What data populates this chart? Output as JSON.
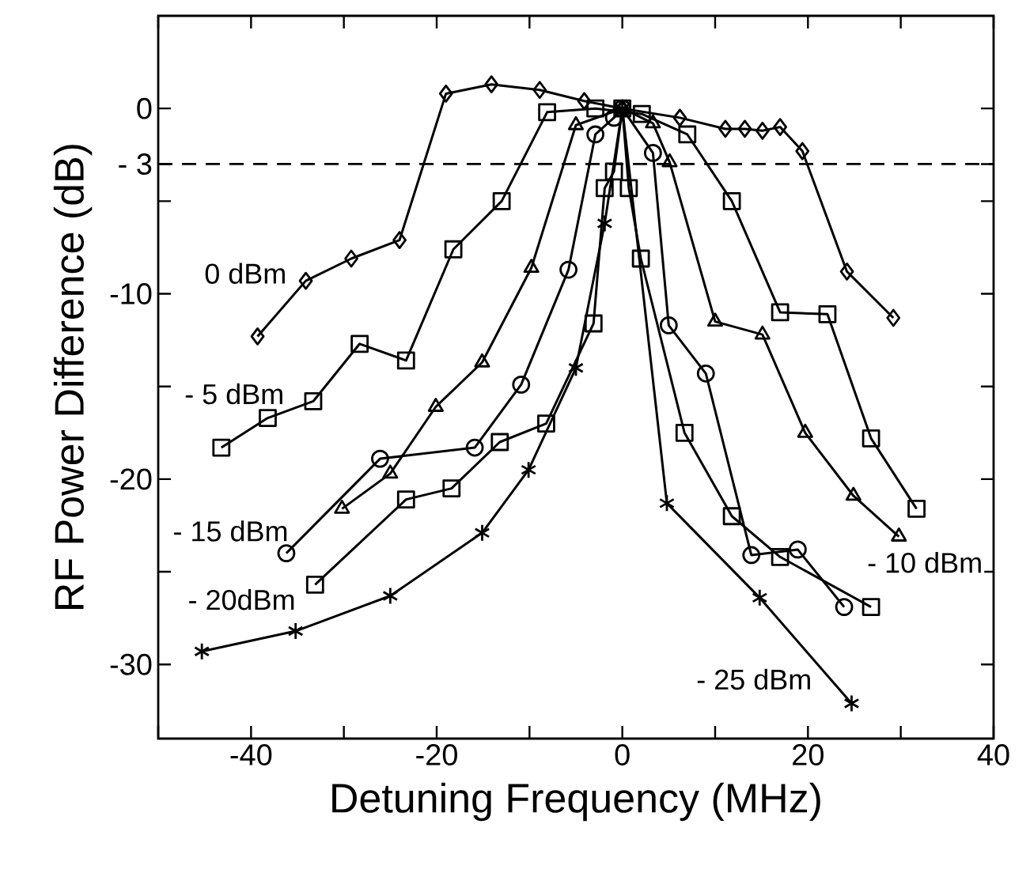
{
  "chart_data": {
    "type": "line",
    "xlabel": "Detuning Frequency (MHz)",
    "ylabel": "RF Power Difference (dB)",
    "xlim": [
      -50,
      40
    ],
    "ylim": [
      -34,
      5
    ],
    "xticks": [
      {
        "value": -50,
        "label": null
      },
      {
        "value": -40,
        "label": "-40"
      },
      {
        "value": -30,
        "label": null
      },
      {
        "value": -20,
        "label": "-20"
      },
      {
        "value": -10,
        "label": null
      },
      {
        "value": 0,
        "label": "0"
      },
      {
        "value": 10,
        "label": null
      },
      {
        "value": 20,
        "label": "20"
      },
      {
        "value": 30,
        "label": null
      },
      {
        "value": 40,
        "label": "40"
      }
    ],
    "yticks": [
      {
        "value": 0,
        "label": "0"
      },
      {
        "value": -3,
        "label": "- 3"
      },
      {
        "value": -5,
        "label": null
      },
      {
        "value": -10,
        "label": "-10"
      },
      {
        "value": -15,
        "label": null
      },
      {
        "value": -20,
        "label": "-20"
      },
      {
        "value": -25,
        "label": null
      },
      {
        "value": -30,
        "label": "-30"
      }
    ],
    "grid": false,
    "legend": "left",
    "ref_lines": [
      {
        "axis": "y",
        "value": -3,
        "color": "#000000",
        "line_style": "dashed"
      }
    ],
    "series": [
      {
        "name": "0 dBm",
        "color": "#000000",
        "marker": "diamond",
        "x": [
          -39.3,
          -34.1,
          -29.2,
          -24.0,
          -19.0,
          -14.1,
          -8.9,
          -4.1,
          0,
          6.2,
          11.1,
          13.2,
          15.1,
          17.0,
          19.4,
          24.2,
          29.2
        ],
        "values": [
          -12.3,
          -9.3,
          -8.1,
          -7.1,
          0.8,
          1.3,
          1.0,
          0.4,
          0,
          -0.5,
          -1.1,
          -1.1,
          -1.2,
          -1.0,
          -2.3,
          -8.8,
          -11.3
        ]
      },
      {
        "name": "- 5 dBm",
        "color": "#000000",
        "marker": "square",
        "x": [
          -43.2,
          -38.2,
          -33.3,
          -28.3,
          -23.3,
          -18.2,
          -13.0,
          -8.1,
          -2.9,
          2.1,
          7.0,
          11.8,
          17.0,
          22.1,
          26.8,
          31.7
        ],
        "values": [
          -18.3,
          -16.7,
          -15.8,
          -12.7,
          -13.6,
          -7.6,
          -5.0,
          -0.2,
          0,
          -0.3,
          -1.4,
          -5.0,
          -11.0,
          -11.1,
          -17.8,
          -21.6
        ]
      },
      {
        "name": "- 10 dBm",
        "color": "#000000",
        "marker": "triangle",
        "x": [
          -30.2,
          -25.0,
          -20.1,
          -15.1,
          -9.8,
          -5.0,
          0,
          3.3,
          5.1,
          10.0,
          15.1,
          19.7,
          24.9,
          29.8
        ],
        "values": [
          -21.6,
          -19.7,
          -16.1,
          -13.7,
          -8.6,
          -0.9,
          0,
          -0.8,
          -2.9,
          -11.5,
          -12.2,
          -17.5,
          -20.9,
          -23.1
        ]
      },
      {
        "name": "- 15 dBm",
        "color": "#000000",
        "marker": "circle",
        "x": [
          -36.2,
          -26.1,
          -15.9,
          -10.9,
          -5.8,
          -2.9,
          -0.9,
          0,
          3.3,
          5.0,
          9.0,
          13.9,
          18.9,
          23.9
        ],
        "values": [
          -24.0,
          -18.9,
          -18.3,
          -14.9,
          -8.7,
          -1.4,
          -0.5,
          0,
          -2.4,
          -11.7,
          -14.3,
          -24.1,
          -23.8,
          -26.9
        ]
      },
      {
        "name": "- 20dBm",
        "color": "#000000",
        "marker": "square",
        "x": [
          -33.1,
          -23.3,
          -18.4,
          -13.2,
          -8.2,
          -3.1,
          -1.9,
          -0.9,
          0,
          0.7,
          2.0,
          6.7,
          11.8,
          17.0,
          26.8
        ],
        "values": [
          -25.7,
          -21.1,
          -20.5,
          -18.0,
          -17.0,
          -11.6,
          -4.3,
          -3.4,
          0,
          -4.3,
          -8.1,
          -17.5,
          -22.0,
          -24.2,
          -26.9
        ]
      },
      {
        "name": "- 25 dBm",
        "color": "#000000",
        "marker": "cross",
        "x": [
          -45.3,
          -35.2,
          -25.0,
          -15.1,
          -10.1,
          -5.0,
          -1.9,
          0,
          4.8,
          14.8,
          24.7
        ],
        "values": [
          -29.3,
          -28.2,
          -26.3,
          -22.9,
          -19.5,
          -14.0,
          -6.2,
          0,
          -21.3,
          -26.4,
          -32.1
        ]
      }
    ]
  }
}
